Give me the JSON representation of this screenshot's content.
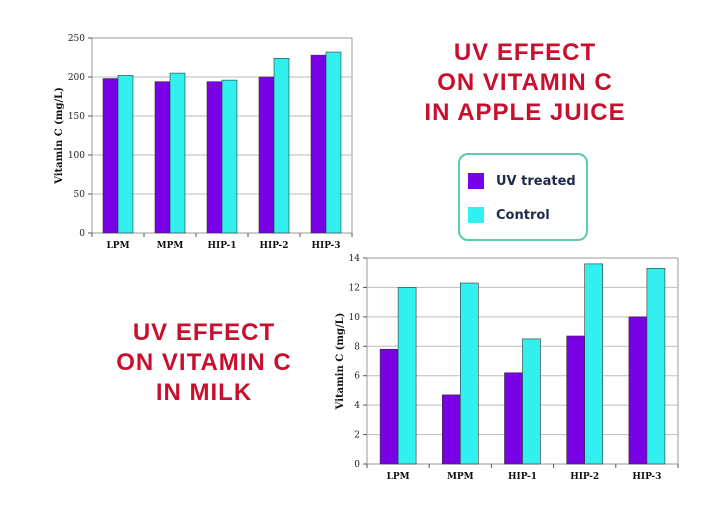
{
  "colors": {
    "uv_treated": "#7a00e6",
    "control": "#33f0f0",
    "title": "#c8102e"
  },
  "apple_title": [
    "UV  EFFECT",
    "ON  VITAMIN  C",
    "IN  APPLE  JUICE"
  ],
  "milk_title": [
    "UV  EFFECT",
    "ON  VITAMIN  C",
    "IN  MILK"
  ],
  "legend": {
    "uv_label": "UV treated",
    "control_label": "Control"
  },
  "chart_data": [
    {
      "id": "apple",
      "type": "bar",
      "title": "UV EFFECT ON VITAMIN C IN APPLE JUICE",
      "xlabel": "",
      "ylabel": "Vitamin C  (mg/L)",
      "ylim": [
        0,
        250
      ],
      "yticks": [
        0,
        50,
        100,
        150,
        200,
        250
      ],
      "categories": [
        "LPM",
        "MPM",
        "HIP-1",
        "HIP-2",
        "HIP-3"
      ],
      "series": [
        {
          "name": "UV treated",
          "values": [
            198,
            194,
            194,
            200,
            228
          ]
        },
        {
          "name": "Control",
          "values": [
            202,
            205,
            196,
            224,
            232
          ]
        }
      ]
    },
    {
      "id": "milk",
      "type": "bar",
      "title": "UV EFFECT ON VITAMIN C IN MILK",
      "xlabel": "",
      "ylabel": "Vitamin C  (mg/L)",
      "ylim": [
        0,
        14
      ],
      "yticks": [
        0,
        2,
        4,
        6,
        8,
        10,
        12,
        14
      ],
      "categories": [
        "LPM",
        "MPM",
        "HIP-1",
        "HIP-2",
        "HIP-3"
      ],
      "series": [
        {
          "name": "UV treated",
          "values": [
            7.8,
            4.7,
            6.2,
            8.7,
            10.0
          ]
        },
        {
          "name": "Control",
          "values": [
            12.0,
            12.3,
            8.5,
            13.6,
            13.3
          ]
        }
      ]
    }
  ]
}
